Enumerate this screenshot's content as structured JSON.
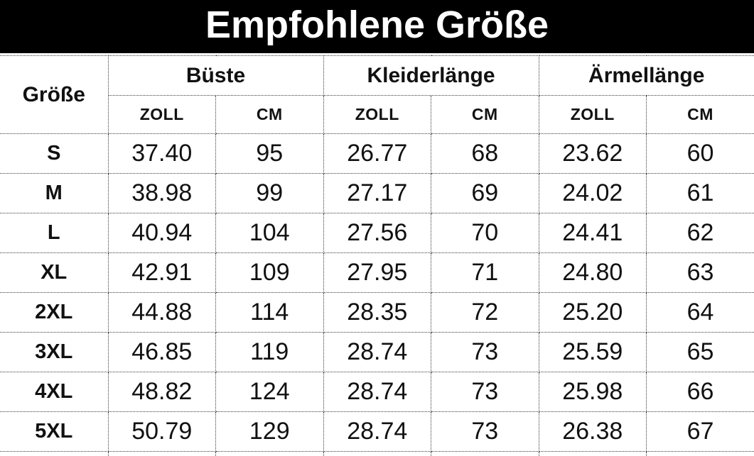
{
  "title": "Empfohlene Größe",
  "chart_data": {
    "type": "table",
    "title": "Empfohlene Größe",
    "size_column_header": "Größe",
    "column_groups": [
      "Büste",
      "Kleiderlänge",
      "Ärmellänge"
    ],
    "unit_row": [
      "ZOLL",
      "CM",
      "ZOLL",
      "CM",
      "ZOLL",
      "CM"
    ],
    "rows": [
      {
        "size": "S",
        "values": [
          "37.40",
          "95",
          "26.77",
          "68",
          "23.62",
          "60"
        ]
      },
      {
        "size": "M",
        "values": [
          "38.98",
          "99",
          "27.17",
          "69",
          "24.02",
          "61"
        ]
      },
      {
        "size": "L",
        "values": [
          "40.94",
          "104",
          "27.56",
          "70",
          "24.41",
          "62"
        ]
      },
      {
        "size": "XL",
        "values": [
          "42.91",
          "109",
          "27.95",
          "71",
          "24.80",
          "63"
        ]
      },
      {
        "size": "2XL",
        "values": [
          "44.88",
          "114",
          "28.35",
          "72",
          "25.20",
          "64"
        ]
      },
      {
        "size": "3XL",
        "values": [
          "46.85",
          "119",
          "28.74",
          "73",
          "25.59",
          "65"
        ]
      },
      {
        "size": "4XL",
        "values": [
          "48.82",
          "124",
          "28.74",
          "73",
          "25.98",
          "66"
        ]
      },
      {
        "size": "5XL",
        "values": [
          "50.79",
          "129",
          "28.74",
          "73",
          "26.38",
          "67"
        ]
      }
    ],
    "layout_hints": {
      "grid": "dotted",
      "header_banner": "black-full-width"
    }
  },
  "colors": {
    "banner_bg": "#000000",
    "banner_text": "#ffffff",
    "table_text": "#111111",
    "border": "#3a3a3a",
    "background": "#ffffff"
  }
}
